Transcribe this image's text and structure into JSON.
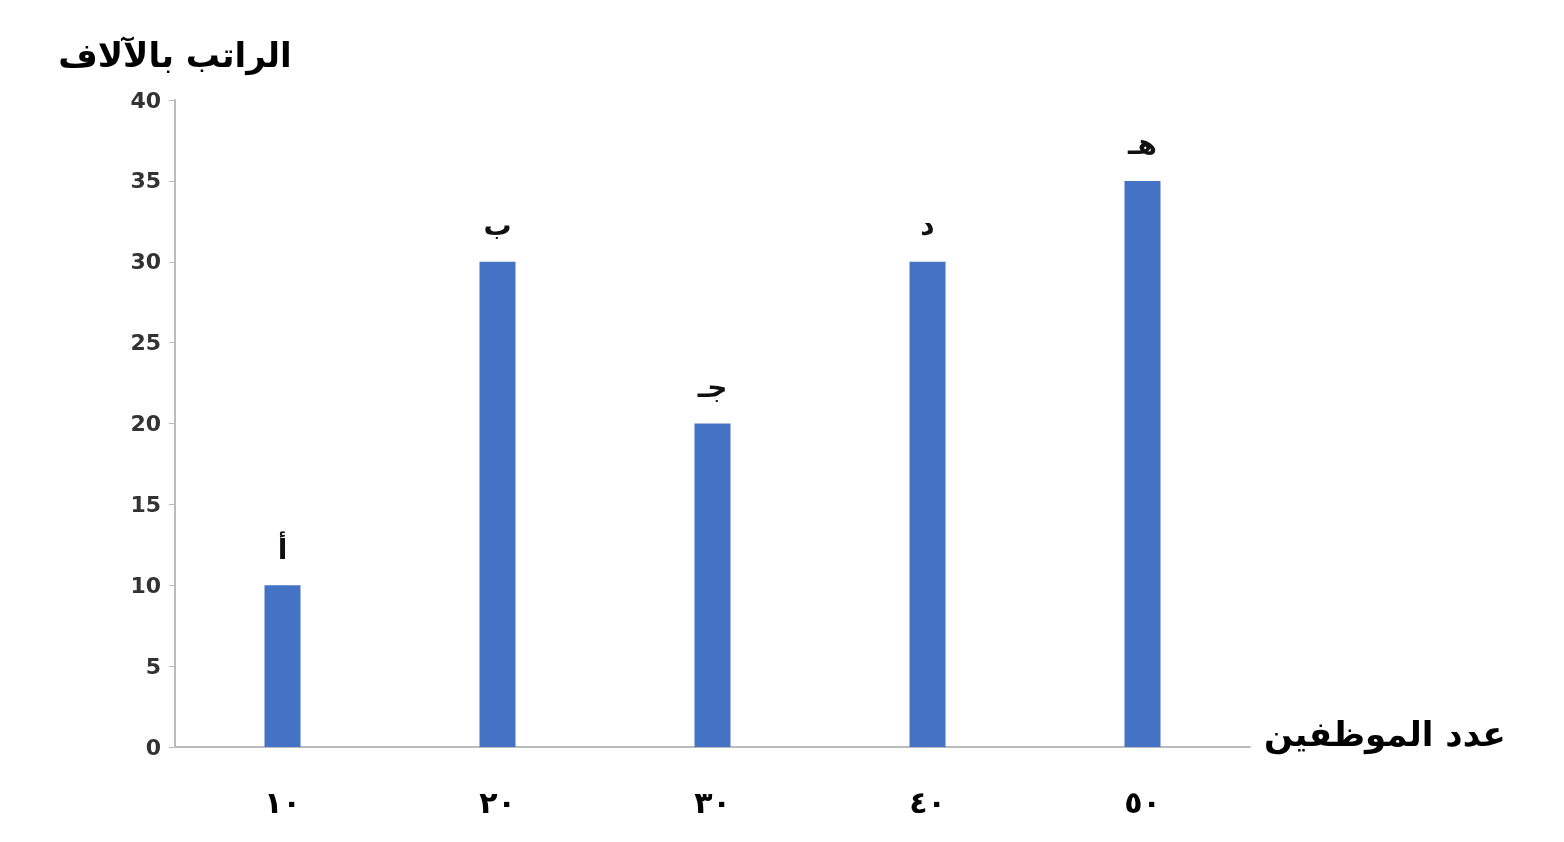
{
  "chart_data": {
    "type": "bar",
    "xlabel": "عدد الموظفين",
    "ylabel": "الراتب بالآلاف",
    "categories": [
      "١٠",
      "٢٠",
      "٣٠",
      "٤٠",
      "٥٠"
    ],
    "values": [
      10,
      30,
      20,
      30,
      35
    ],
    "color": "#4472c4",
    "ylim": [
      0,
      40
    ],
    "yticks": [
      0,
      5,
      10,
      15,
      20,
      25,
      30,
      35,
      40
    ],
    "grid": false,
    "annotations": [
      {
        "text": "أ",
        "x": "١٠",
        "y": 10
      },
      {
        "text": "ب",
        "x": "٢٠",
        "y": 30
      },
      {
        "text": "جـ",
        "x": "٣٠",
        "y": 20
      },
      {
        "text": "د",
        "x": "٤٠",
        "y": 30
      },
      {
        "text": "هـ",
        "x": "٥٠",
        "y": 35
      }
    ]
  }
}
